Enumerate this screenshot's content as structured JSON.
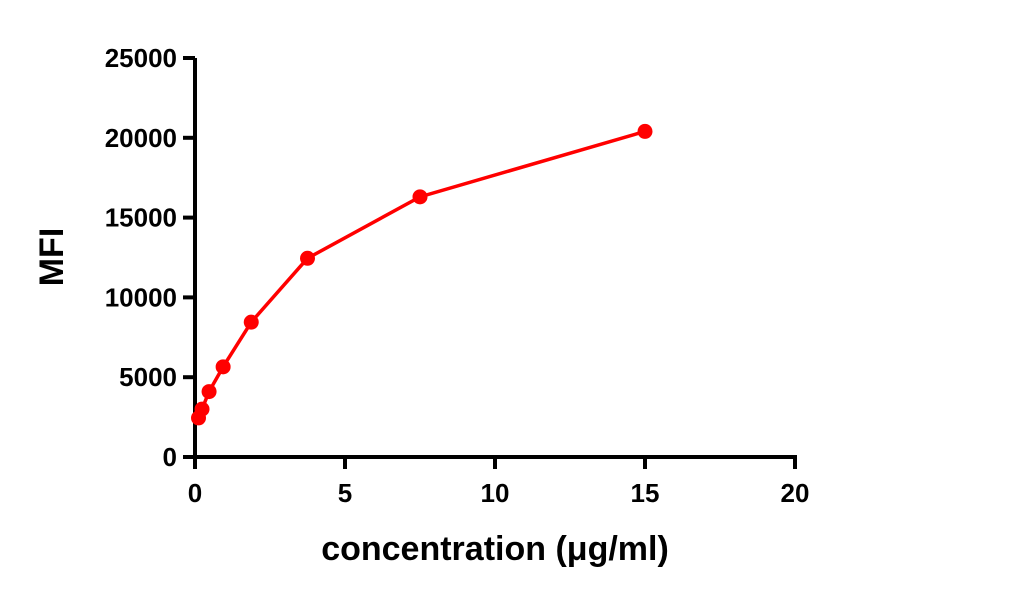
{
  "chart_data": {
    "type": "line",
    "title": "",
    "xlabel": "concentration (μg/ml)",
    "ylabel": "MFI",
    "xlim": [
      0,
      20
    ],
    "ylim": [
      0,
      25000
    ],
    "xticks": [
      0,
      5,
      10,
      15,
      20
    ],
    "yticks": [
      0,
      5000,
      10000,
      15000,
      20000,
      25000
    ],
    "grid": false,
    "color": "#ff0000",
    "series": [
      {
        "x": [
          0.117,
          0.234,
          0.469,
          0.9375,
          1.875,
          3.75,
          7.5,
          15
        ],
        "y": [
          2450,
          3000,
          4100,
          5650,
          8450,
          12450,
          16300,
          20400
        ]
      }
    ]
  }
}
